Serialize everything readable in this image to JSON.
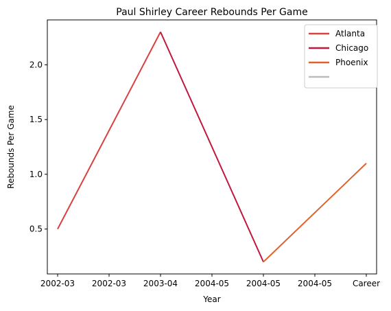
{
  "chart_data": {
    "type": "line",
    "title": "Paul Shirley Career Rebounds Per Game",
    "xlabel": "Year",
    "ylabel": "Rebounds Per Game",
    "categories": [
      "2002-03",
      "2002-03",
      "2003-04",
      "2004-05",
      "2004-05",
      "2004-05",
      "Career"
    ],
    "ylim": [
      0.09,
      2.41
    ],
    "yticks": [
      0.5,
      1.0,
      1.5,
      2.0
    ],
    "ytick_labels": [
      "0.5",
      "1.0",
      "1.5",
      "2.0"
    ],
    "grid": false,
    "legend_position": "top-right",
    "series": [
      {
        "name": "Atlanta",
        "color": "#d94040",
        "points": [
          [
            0,
            0.5
          ],
          [
            2,
            2.3
          ]
        ]
      },
      {
        "name": "Chicago",
        "color": "#c0183c",
        "points": [
          [
            2,
            2.3
          ],
          [
            4,
            0.2
          ]
        ]
      },
      {
        "name": "Phoenix",
        "color": "#e0622a",
        "points": [
          [
            4,
            0.2
          ],
          [
            6,
            1.1
          ]
        ]
      },
      {
        "name": "",
        "color": "#bbbbbb",
        "points": []
      }
    ]
  }
}
